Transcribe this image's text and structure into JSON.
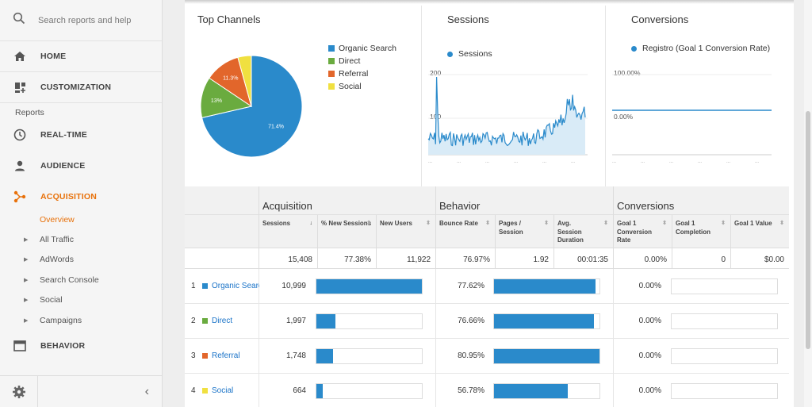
{
  "sidebar": {
    "search_placeholder": "Search reports and help",
    "home": "HOME",
    "customization": "CUSTOMIZATION",
    "reports_label": "Reports",
    "realtime": "REAL-TIME",
    "audience": "AUDIENCE",
    "acquisition": "ACQUISITION",
    "overview": "Overview",
    "sub_items": [
      "All Traffic",
      "AdWords",
      "Search Console",
      "Social",
      "Campaigns"
    ],
    "behavior": "BEHAVIOR"
  },
  "cards": {
    "channels": {
      "title": "Top Channels",
      "legend": [
        "Organic Search",
        "Direct",
        "Referral",
        "Social"
      ],
      "colors": [
        "#2a8acb",
        "#6aab3f",
        "#e2662b",
        "#f0e040"
      ],
      "slices": [
        71.4,
        13,
        11.3,
        4.3
      ],
      "slice_labels": [
        "71.4%",
        "13%",
        "11.3%"
      ]
    },
    "sessions": {
      "title": "Sessions",
      "legend": "Sessions",
      "y_labels": [
        "200",
        "100"
      ]
    },
    "conversions": {
      "title": "Conversions",
      "legend": "Registro (Goal 1 Conversion Rate)",
      "y_labels": [
        "100.00%",
        "0.00%"
      ]
    }
  },
  "table": {
    "groups": [
      "Acquisition",
      "Behavior",
      "Conversions"
    ],
    "headers": [
      "Sessions",
      "% New Sessions",
      "New Users",
      "Bounce Rate",
      "Pages / Session",
      "Avg. Session Duration",
      "Goal 1 Conversion Rate",
      "Goal 1 Completion",
      "Goal 1 Value"
    ],
    "sort_arrow": "↓",
    "totals": [
      "15,408",
      "77.38%",
      "11,922",
      "76.97%",
      "1.92",
      "00:01:35",
      "0.00%",
      "0",
      "$0.00"
    ],
    "rows": [
      {
        "rank": "1",
        "channel": "Organic Search",
        "sessions": "10,999",
        "sessions_pct": 71.4,
        "bounce": "77.62%",
        "bounce_pct": 77.62,
        "conv": "0.00%"
      },
      {
        "rank": "2",
        "channel": "Direct",
        "sessions": "1,997",
        "sessions_pct": 13.0,
        "bounce": "76.66%",
        "bounce_pct": 76.66,
        "conv": "0.00%"
      },
      {
        "rank": "3",
        "channel": "Referral",
        "sessions": "1,748",
        "sessions_pct": 11.3,
        "bounce": "80.95%",
        "bounce_pct": 80.95,
        "conv": "0.00%"
      },
      {
        "rank": "4",
        "channel": "Social",
        "sessions": "664",
        "sessions_pct": 4.3,
        "bounce": "56.78%",
        "bounce_pct": 56.78,
        "conv": "0.00%"
      }
    ]
  }
}
